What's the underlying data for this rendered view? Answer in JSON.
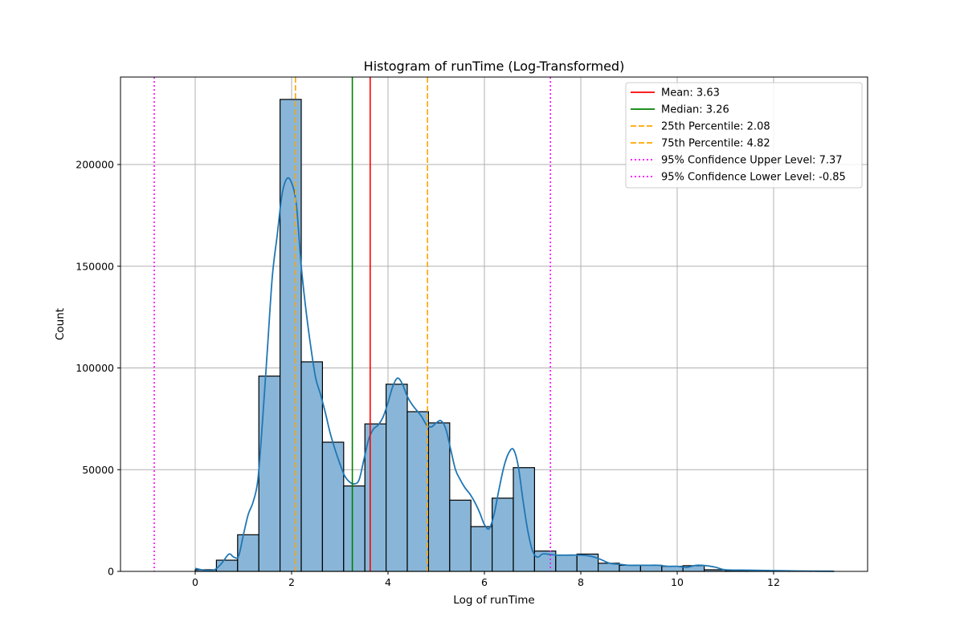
{
  "chart_data": {
    "type": "bar",
    "title": "Histogram of runTime (Log-Transformed)",
    "xlabel": "Log of runTime",
    "ylabel": "Count",
    "xlim": [
      -1.55,
      13.95
    ],
    "ylim": [
      0,
      243000
    ],
    "x_ticks": [
      0,
      2,
      4,
      6,
      8,
      10,
      12
    ],
    "y_ticks": [
      0,
      50000,
      100000,
      150000,
      200000
    ],
    "grid": true,
    "legend_position": "top-right",
    "bar_color": "#89b6d8",
    "bar_edge_color": "#000000",
    "kde_color": "#1f77b4",
    "bins": [
      {
        "x0": 0.0,
        "x1": 0.44,
        "count": 800
      },
      {
        "x0": 0.44,
        "x1": 0.88,
        "count": 5500
      },
      {
        "x0": 0.88,
        "x1": 1.32,
        "count": 18000
      },
      {
        "x0": 1.32,
        "x1": 1.76,
        "count": 96000
      },
      {
        "x0": 1.76,
        "x1": 2.2,
        "count": 232000
      },
      {
        "x0": 2.2,
        "x1": 2.64,
        "count": 103000
      },
      {
        "x0": 2.64,
        "x1": 3.08,
        "count": 63500
      },
      {
        "x0": 3.08,
        "x1": 3.52,
        "count": 42000
      },
      {
        "x0": 3.52,
        "x1": 3.96,
        "count": 72500
      },
      {
        "x0": 3.96,
        "x1": 4.4,
        "count": 92000
      },
      {
        "x0": 4.4,
        "x1": 4.84,
        "count": 78500
      },
      {
        "x0": 4.84,
        "x1": 5.28,
        "count": 73000
      },
      {
        "x0": 5.28,
        "x1": 5.72,
        "count": 35000
      },
      {
        "x0": 5.72,
        "x1": 6.16,
        "count": 22000
      },
      {
        "x0": 6.16,
        "x1": 6.6,
        "count": 36000
      },
      {
        "x0": 6.6,
        "x1": 7.04,
        "count": 51000
      },
      {
        "x0": 7.04,
        "x1": 7.48,
        "count": 10000
      },
      {
        "x0": 7.48,
        "x1": 7.92,
        "count": 8000
      },
      {
        "x0": 7.92,
        "x1": 8.36,
        "count": 8500
      },
      {
        "x0": 8.36,
        "x1": 8.8,
        "count": 4000
      },
      {
        "x0": 8.8,
        "x1": 9.24,
        "count": 3000
      },
      {
        "x0": 9.24,
        "x1": 9.68,
        "count": 3000
      },
      {
        "x0": 9.68,
        "x1": 10.12,
        "count": 2500
      },
      {
        "x0": 10.12,
        "x1": 10.56,
        "count": 2800
      },
      {
        "x0": 10.56,
        "x1": 11.0,
        "count": 800
      },
      {
        "x0": 11.0,
        "x1": 11.44,
        "count": 300
      },
      {
        "x0": 11.44,
        "x1": 11.88,
        "count": 200
      },
      {
        "x0": 11.88,
        "x1": 12.32,
        "count": 150
      },
      {
        "x0": 12.32,
        "x1": 12.76,
        "count": 80
      },
      {
        "x0": 12.76,
        "x1": 13.25,
        "count": 50
      }
    ],
    "kde": {
      "x": [
        0.0,
        0.2,
        0.4,
        0.55,
        0.7,
        0.8,
        0.9,
        1.0,
        1.1,
        1.2,
        1.3,
        1.4,
        1.5,
        1.6,
        1.7,
        1.8,
        1.9,
        2.0,
        2.1,
        2.2,
        2.3,
        2.4,
        2.5,
        2.6,
        2.7,
        2.8,
        2.9,
        3.0,
        3.1,
        3.2,
        3.3,
        3.4,
        3.5,
        3.6,
        3.7,
        3.8,
        3.9,
        4.0,
        4.1,
        4.2,
        4.3,
        4.4,
        4.5,
        4.6,
        4.7,
        4.8,
        4.9,
        5.0,
        5.1,
        5.2,
        5.3,
        5.4,
        5.5,
        5.6,
        5.7,
        5.8,
        5.9,
        6.0,
        6.1,
        6.2,
        6.3,
        6.4,
        6.5,
        6.6,
        6.7,
        6.8,
        6.9,
        7.0,
        7.1,
        7.2,
        7.3,
        7.5,
        7.7,
        8.0,
        8.2,
        8.4,
        8.6,
        8.8,
        9.0,
        9.2,
        9.4,
        9.6,
        9.8,
        10.0,
        10.2,
        10.4,
        10.6,
        10.8,
        11.0,
        11.5,
        12.0,
        12.5,
        13.25
      ],
      "y": [
        1500,
        500,
        800,
        4000,
        8500,
        7000,
        7500,
        18000,
        28000,
        34000,
        45000,
        75000,
        110000,
        145000,
        165000,
        185000,
        193000,
        191000,
        180000,
        150000,
        128000,
        110000,
        95000,
        87000,
        78000,
        68000,
        60000,
        53000,
        47000,
        44000,
        43000,
        45000,
        55000,
        65000,
        70000,
        72000,
        76000,
        83000,
        91000,
        95000,
        92000,
        86000,
        82000,
        79000,
        76000,
        72000,
        71000,
        73000,
        74000,
        70000,
        60000,
        50000,
        45000,
        41000,
        38000,
        34000,
        29000,
        23000,
        21000,
        28000,
        40000,
        51000,
        58000,
        60000,
        52000,
        35000,
        20000,
        10000,
        7000,
        8500,
        8500,
        8000,
        8000,
        8000,
        7500,
        6000,
        4000,
        3500,
        3000,
        3000,
        3000,
        3000,
        2500,
        2500,
        2000,
        3000,
        2800,
        2000,
        800,
        600,
        400,
        200,
        80
      ]
    },
    "ref_lines": [
      {
        "label": "Mean: 3.63",
        "x": 3.63,
        "color": "#ff0000",
        "style": "solid"
      },
      {
        "label": "Median: 3.26",
        "x": 3.26,
        "color": "#008000",
        "style": "solid"
      },
      {
        "label": "25th Percentile: 2.08",
        "x": 2.08,
        "color": "#ffa500",
        "style": "dashed"
      },
      {
        "label": "75th Percentile: 4.82",
        "x": 4.82,
        "color": "#ffa500",
        "style": "dashed"
      },
      {
        "label": "95% Confidence Upper Level: 7.37",
        "x": 7.37,
        "color": "#ff00ff",
        "style": "dotted"
      },
      {
        "label": "95% Confidence Lower Level: -0.85",
        "x": -0.85,
        "color": "#ff00ff",
        "style": "dotted"
      }
    ]
  }
}
